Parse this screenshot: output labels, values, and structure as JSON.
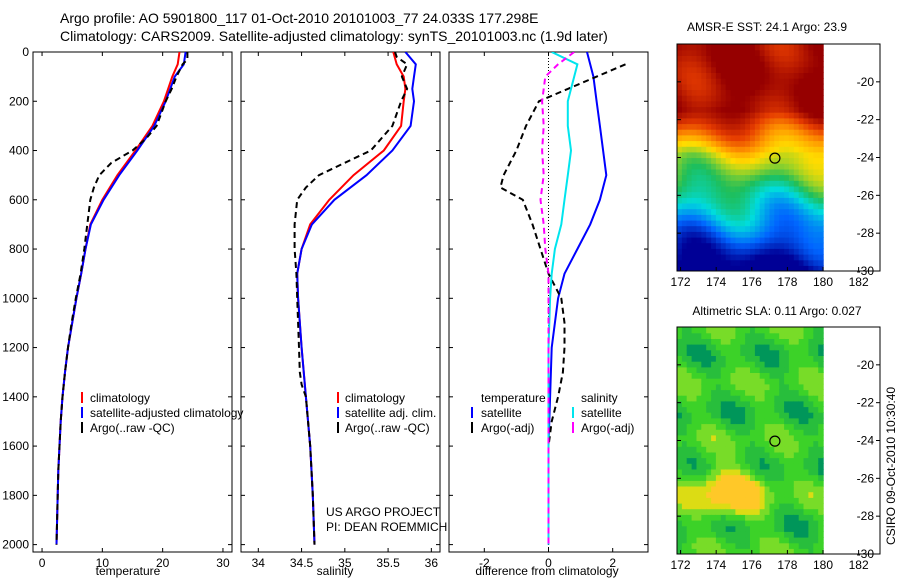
{
  "header": {
    "line1": "Argo profile: AO 5901800_117 01-Oct-2010 20101003_77 24.033S 177.298E",
    "line2": "Climatology: CARS2009. Satellite-adjusted climatology: synTS_20101003.nc (1.9d later)"
  },
  "side_stamp": "CSIRO 09-Oct-2010 10:30:40",
  "credit": {
    "line1": "US ARGO PROJECT",
    "line2": "PI: DEAN ROEMMICH"
  },
  "colors": {
    "red": "#ff0000",
    "blue": "#0000ff",
    "black": "#000000",
    "cyan": "#00e5ee",
    "magenta": "#ff00ff"
  },
  "depth_axis": {
    "ylim": [
      0,
      2000
    ],
    "ticks": [
      "0",
      "200",
      "400",
      "600",
      "800",
      "1000",
      "1200",
      "1400",
      "1600",
      "1800",
      "2000"
    ]
  },
  "chart_data": [
    {
      "type": "line",
      "id": "temperature",
      "xlabel": "temperature",
      "xlim": [
        -1.5,
        31.5
      ],
      "ylim": [
        0,
        2030
      ],
      "xticks": [
        "0",
        "10",
        "20",
        "30"
      ],
      "legend": [
        "climatology",
        "satellite-adjusted climatology",
        "Argo(..raw -QC)"
      ],
      "series": [
        {
          "name": "climatology",
          "color": "red",
          "dash": "solid",
          "points": [
            [
              22.8,
              0
            ],
            [
              22.5,
              50
            ],
            [
              21.6,
              100
            ],
            [
              20.2,
              200
            ],
            [
              18.3,
              300
            ],
            [
              15.5,
              400
            ],
            [
              12.5,
              500
            ],
            [
              10.0,
              600
            ],
            [
              8.0,
              700
            ],
            [
              7.2,
              800
            ],
            [
              6.5,
              900
            ],
            [
              5.7,
              1000
            ],
            [
              5.0,
              1100
            ],
            [
              4.3,
              1200
            ],
            [
              3.8,
              1300
            ],
            [
              3.4,
              1400
            ],
            [
              3.1,
              1500
            ],
            [
              2.9,
              1600
            ],
            [
              2.7,
              1700
            ],
            [
              2.6,
              1800
            ],
            [
              2.5,
              1900
            ],
            [
              2.4,
              2000
            ]
          ]
        },
        {
          "name": "satellite-adjusted climatology",
          "color": "blue",
          "dash": "solid",
          "points": [
            [
              23.8,
              0
            ],
            [
              23.5,
              50
            ],
            [
              22.0,
              100
            ],
            [
              20.5,
              200
            ],
            [
              18.6,
              300
            ],
            [
              15.8,
              400
            ],
            [
              12.8,
              500
            ],
            [
              10.2,
              600
            ],
            [
              8.1,
              700
            ],
            [
              7.2,
              800
            ],
            [
              6.5,
              900
            ],
            [
              5.7,
              1000
            ],
            [
              5.0,
              1100
            ],
            [
              4.3,
              1200
            ],
            [
              3.8,
              1300
            ],
            [
              3.4,
              1400
            ],
            [
              3.1,
              1500
            ],
            [
              2.9,
              1600
            ],
            [
              2.7,
              1700
            ],
            [
              2.6,
              1800
            ],
            [
              2.5,
              1900
            ],
            [
              2.4,
              2000
            ]
          ]
        },
        {
          "name": "Argo(..raw -QC)",
          "color": "black",
          "dash": "dash",
          "points": [
            [
              24.1,
              0
            ],
            [
              24.1,
              30
            ],
            [
              23.3,
              50
            ],
            [
              22.3,
              100
            ],
            [
              21.5,
              150
            ],
            [
              20.5,
              200
            ],
            [
              19.0,
              300
            ],
            [
              17.3,
              350
            ],
            [
              15.0,
              400
            ],
            [
              11.5,
              450
            ],
            [
              9.5,
              500
            ],
            [
              8.6,
              550
            ],
            [
              8.0,
              600
            ],
            [
              7.5,
              700
            ],
            [
              7.0,
              800
            ],
            [
              6.4,
              900
            ],
            [
              5.6,
              1000
            ],
            [
              4.9,
              1100
            ],
            [
              4.3,
              1200
            ],
            [
              3.8,
              1300
            ],
            [
              3.4,
              1400
            ],
            [
              3.1,
              1500
            ],
            [
              2.9,
              1600
            ],
            [
              2.7,
              1700
            ],
            [
              2.6,
              1800
            ],
            [
              2.5,
              1900
            ],
            [
              2.4,
              2000
            ]
          ]
        }
      ]
    },
    {
      "type": "line",
      "id": "salinity",
      "xlabel": "salinity",
      "xlim": [
        33.8,
        36.1
      ],
      "ylim": [
        0,
        2030
      ],
      "xticks": [
        "34",
        "34.5",
        "35",
        "35.5",
        "36"
      ],
      "legend": [
        "climatology",
        "satellite adj. clim.",
        "Argo(..raw -QC)"
      ],
      "series": [
        {
          "name": "climatology",
          "color": "red",
          "dash": "solid",
          "points": [
            [
              35.56,
              0
            ],
            [
              35.6,
              50
            ],
            [
              35.68,
              100
            ],
            [
              35.7,
              150
            ],
            [
              35.68,
              200
            ],
            [
              35.65,
              300
            ],
            [
              35.45,
              400
            ],
            [
              35.1,
              500
            ],
            [
              34.82,
              600
            ],
            [
              34.6,
              700
            ],
            [
              34.5,
              800
            ],
            [
              34.45,
              900
            ],
            [
              34.46,
              1000
            ],
            [
              34.5,
              1200
            ],
            [
              34.55,
              1400
            ],
            [
              34.6,
              1600
            ],
            [
              34.63,
              1800
            ],
            [
              34.65,
              2000
            ]
          ]
        },
        {
          "name": "satellite adj. clim.",
          "color": "blue",
          "dash": "solid",
          "points": [
            [
              35.7,
              0
            ],
            [
              35.82,
              50
            ],
            [
              35.8,
              100
            ],
            [
              35.78,
              150
            ],
            [
              35.8,
              200
            ],
            [
              35.76,
              300
            ],
            [
              35.55,
              400
            ],
            [
              35.25,
              500
            ],
            [
              34.88,
              600
            ],
            [
              34.62,
              700
            ],
            [
              34.5,
              800
            ],
            [
              34.45,
              900
            ],
            [
              34.46,
              1000
            ],
            [
              34.5,
              1200
            ],
            [
              34.55,
              1400
            ],
            [
              34.6,
              1600
            ],
            [
              34.63,
              1800
            ],
            [
              34.65,
              2000
            ]
          ]
        },
        {
          "name": "Argo(..raw -QC)",
          "color": "black",
          "dash": "dash",
          "points": [
            [
              35.58,
              0
            ],
            [
              35.6,
              20
            ],
            [
              35.72,
              50
            ],
            [
              35.66,
              100
            ],
            [
              35.72,
              150
            ],
            [
              35.65,
              200
            ],
            [
              35.55,
              300
            ],
            [
              35.3,
              400
            ],
            [
              35.0,
              450
            ],
            [
              34.7,
              500
            ],
            [
              34.55,
              550
            ],
            [
              34.45,
              600
            ],
            [
              34.42,
              700
            ],
            [
              34.42,
              800
            ],
            [
              34.44,
              900
            ],
            [
              34.45,
              1000
            ],
            [
              34.46,
              1100
            ],
            [
              34.47,
              1200
            ],
            [
              34.48,
              1300
            ],
            [
              34.5,
              1350
            ],
            [
              34.55,
              1400
            ],
            [
              34.6,
              1600
            ],
            [
              34.63,
              1800
            ],
            [
              34.65,
              2000
            ]
          ]
        }
      ]
    },
    {
      "type": "line",
      "id": "difference",
      "xlabel": "difference from climatology",
      "xlim": [
        -3.1,
        3.1
      ],
      "ylim": [
        0,
        2030
      ],
      "xticks": [
        "-2",
        "0",
        "2"
      ],
      "zero_line": true,
      "legend_titles": [
        "temperature",
        "salinity"
      ],
      "legend": [
        "satellite",
        "Argo(-adj)",
        "satellite",
        "Argo(-adj)"
      ],
      "series": [
        {
          "name": "satellite",
          "group": "temperature",
          "color": "blue",
          "dash": "solid",
          "points": [
            [
              1.2,
              0
            ],
            [
              1.3,
              50
            ],
            [
              1.4,
              100
            ],
            [
              1.5,
              200
            ],
            [
              1.6,
              300
            ],
            [
              1.7,
              400
            ],
            [
              1.8,
              500
            ],
            [
              1.6,
              600
            ],
            [
              1.3,
              700
            ],
            [
              0.9,
              800
            ],
            [
              0.5,
              900
            ],
            [
              0.3,
              1000
            ],
            [
              0.2,
              1100
            ],
            [
              0.1,
              1200
            ],
            [
              0.05,
              1400
            ],
            [
              0,
              1600
            ],
            [
              0,
              2000
            ]
          ]
        },
        {
          "name": "Argo(-adj)",
          "group": "temperature",
          "color": "black",
          "dash": "dash",
          "points": [
            [
              2.4,
              50
            ],
            [
              0.6,
              150
            ],
            [
              -0.3,
              200
            ],
            [
              -0.7,
              300
            ],
            [
              -1.0,
              400
            ],
            [
              -1.4,
              500
            ],
            [
              -1.5,
              550
            ],
            [
              -0.8,
              600
            ],
            [
              -0.5,
              700
            ],
            [
              0,
              900
            ],
            [
              0.4,
              1000
            ],
            [
              0.5,
              1100
            ],
            [
              0.5,
              1200
            ],
            [
              0.45,
              1300
            ],
            [
              0.3,
              1400
            ],
            [
              0.1,
              1500
            ],
            [
              0,
              1600
            ],
            [
              0,
              1800
            ],
            [
              0,
              2000
            ]
          ]
        },
        {
          "name": "satellite",
          "group": "salinity",
          "color": "cyan",
          "dash": "solid",
          "points": [
            [
              0.1,
              0
            ],
            [
              0.9,
              50
            ],
            [
              0.8,
              100
            ],
            [
              0.6,
              200
            ],
            [
              0.6,
              300
            ],
            [
              0.7,
              400
            ],
            [
              0.6,
              500
            ],
            [
              0.5,
              600
            ],
            [
              0.4,
              700
            ],
            [
              0.2,
              800
            ],
            [
              0.1,
              900
            ],
            [
              0.05,
              1000
            ],
            [
              0,
              1200
            ],
            [
              0,
              1600
            ],
            [
              0,
              2000
            ]
          ]
        },
        {
          "name": "Argo(-adj)",
          "group": "salinity",
          "color": "magenta",
          "dash": "dash",
          "points": [
            [
              0.8,
              0
            ],
            [
              0.3,
              50
            ],
            [
              -0.1,
              100
            ],
            [
              -0.2,
              200
            ],
            [
              -0.15,
              300
            ],
            [
              -0.2,
              400
            ],
            [
              -0.15,
              500
            ],
            [
              -0.25,
              600
            ],
            [
              -0.15,
              700
            ],
            [
              -0.1,
              800
            ],
            [
              0,
              900
            ],
            [
              0,
              1000
            ],
            [
              0,
              1200
            ],
            [
              0,
              1600
            ],
            [
              0,
              2000
            ]
          ]
        }
      ]
    },
    {
      "type": "heatmap",
      "id": "sst_map",
      "title": "AMSR-E SST: 24.1 Argo: 23.9",
      "xlim": [
        171.8,
        183.2
      ],
      "ylim": [
        -30,
        -18
      ],
      "xticks": [
        "172",
        "174",
        "176",
        "178",
        "180",
        "182"
      ],
      "yticks": [
        "-20",
        "-22",
        "-24",
        "-26",
        "-28",
        "-30"
      ],
      "data_extent": [
        171.8,
        180,
        -30,
        -18
      ],
      "argo_position": [
        177.298,
        -24.033
      ]
    },
    {
      "type": "heatmap",
      "id": "sla_map",
      "title": "Altimetric SLA: 0.11 Argo: 0.027",
      "xlim": [
        171.8,
        183.2
      ],
      "ylim": [
        -30,
        -18
      ],
      "xticks": [
        "172",
        "174",
        "176",
        "178",
        "180",
        "182"
      ],
      "yticks": [
        "-20",
        "-22",
        "-24",
        "-26",
        "-28",
        "-30"
      ],
      "data_extent": [
        171.8,
        180,
        -30,
        -18
      ],
      "argo_position": [
        177.298,
        -24.033
      ]
    }
  ]
}
